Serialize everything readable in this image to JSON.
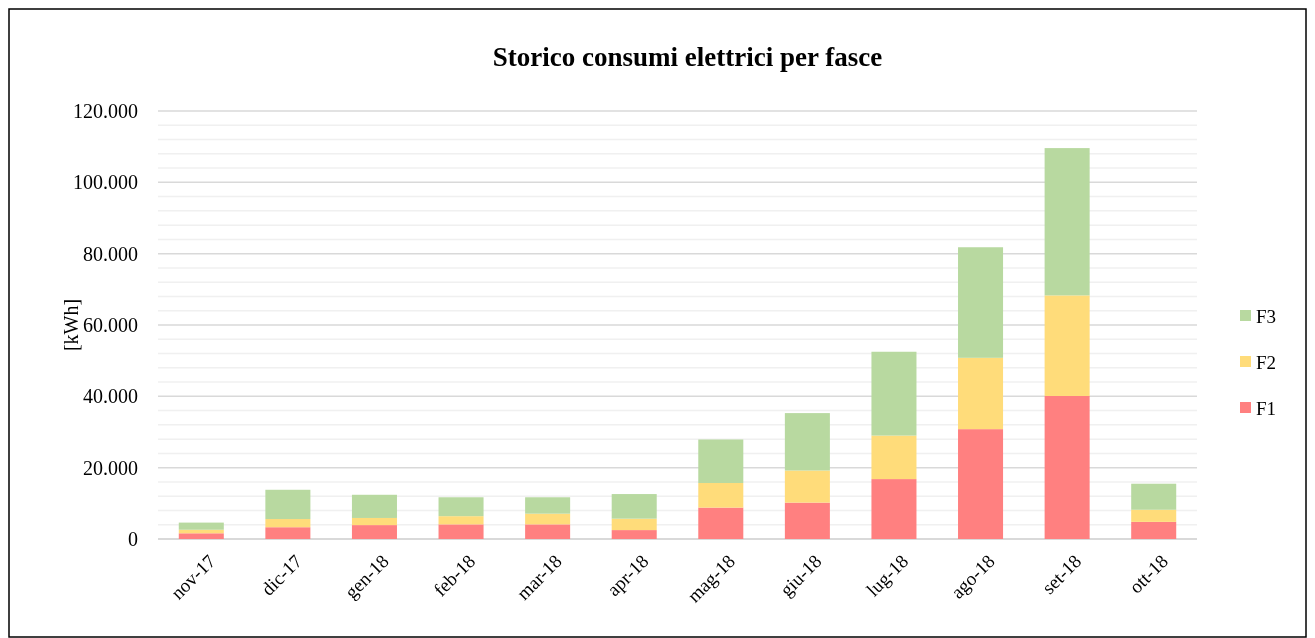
{
  "chart_data": {
    "type": "bar",
    "title": "Storico consumi elettrici per fasce",
    "ylabel": "[kWh]",
    "stacked": true,
    "categories": [
      "nov-17",
      "dic-17",
      "gen-18",
      "feb-18",
      "mar-18",
      "apr-18",
      "mag-18",
      "giu-18",
      "lug-18",
      "ago-18",
      "set-18",
      "ott-18"
    ],
    "series": [
      {
        "name": "F1",
        "color": "#ff8080",
        "values": [
          1600,
          3300,
          3900,
          4100,
          4100,
          2500,
          8800,
          10200,
          16800,
          30800,
          40100,
          4800
        ]
      },
      {
        "name": "F2",
        "color": "#ffdc7a",
        "values": [
          1000,
          2300,
          2000,
          2300,
          3000,
          3200,
          6900,
          9000,
          12200,
          20000,
          28200,
          3400
        ]
      },
      {
        "name": "F3",
        "color": "#b8d9a0",
        "values": [
          2000,
          8200,
          6500,
          5300,
          4600,
          6900,
          12200,
          16100,
          23500,
          31000,
          41300,
          7300
        ]
      }
    ],
    "ylim": [
      0,
      120000
    ],
    "yticks": [
      {
        "value": 0,
        "label": "0"
      },
      {
        "value": 4000,
        "label": null
      },
      {
        "value": 8000,
        "label": null
      },
      {
        "value": 12000,
        "label": null
      },
      {
        "value": 16000,
        "label": null
      },
      {
        "value": 20000,
        "label": "20.000"
      },
      {
        "value": 24000,
        "label": null
      },
      {
        "value": 28000,
        "label": null
      },
      {
        "value": 32000,
        "label": null
      },
      {
        "value": 36000,
        "label": null
      },
      {
        "value": 40000,
        "label": "40.000"
      },
      {
        "value": 44000,
        "label": null
      },
      {
        "value": 48000,
        "label": null
      },
      {
        "value": 52000,
        "label": null
      },
      {
        "value": 56000,
        "label": null
      },
      {
        "value": 60000,
        "label": "60.000"
      },
      {
        "value": 64000,
        "label": null
      },
      {
        "value": 68000,
        "label": null
      },
      {
        "value": 72000,
        "label": null
      },
      {
        "value": 76000,
        "label": null
      },
      {
        "value": 80000,
        "label": "80.000"
      },
      {
        "value": 84000,
        "label": null
      },
      {
        "value": 88000,
        "label": null
      },
      {
        "value": 92000,
        "label": null
      },
      {
        "value": 96000,
        "label": null
      },
      {
        "value": 100000,
        "label": "100.000"
      },
      {
        "value": 104000,
        "label": null
      },
      {
        "value": 108000,
        "label": null
      },
      {
        "value": 112000,
        "label": null
      },
      {
        "value": 116000,
        "label": null
      },
      {
        "value": 120000,
        "label": "120.000"
      }
    ],
    "grid": true,
    "legend": "right"
  }
}
